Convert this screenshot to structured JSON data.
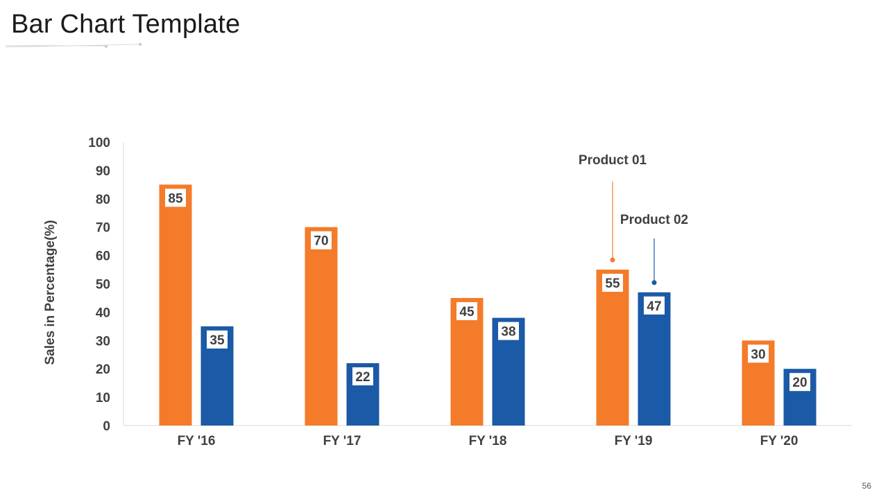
{
  "slide": {
    "title": "Bar Chart Template",
    "page_number": "56"
  },
  "colors": {
    "product_01": "#F47B2A",
    "product_02": "#1B5AA6",
    "axis": "#D9D9D9",
    "text": "#404040"
  },
  "chart_data": {
    "type": "bar",
    "title": "",
    "xlabel": "",
    "ylabel": "Sales in Percentage(%)",
    "ylim": [
      0,
      100
    ],
    "yticks": [
      0,
      10,
      20,
      30,
      40,
      50,
      60,
      70,
      80,
      90,
      100
    ],
    "categories": [
      "FY '16",
      "FY '17",
      "FY '18",
      "FY '19",
      "FY '20"
    ],
    "series": [
      {
        "name": "Product 01",
        "values": [
          85,
          70,
          45,
          55,
          30
        ]
      },
      {
        "name": "Product 02",
        "values": [
          35,
          22,
          38,
          47,
          20
        ]
      }
    ],
    "annotations": [
      {
        "text": "Product 01",
        "series": 0,
        "category": "FY '19"
      },
      {
        "text": "Product 02",
        "series": 1,
        "category": "FY '19"
      }
    ]
  }
}
